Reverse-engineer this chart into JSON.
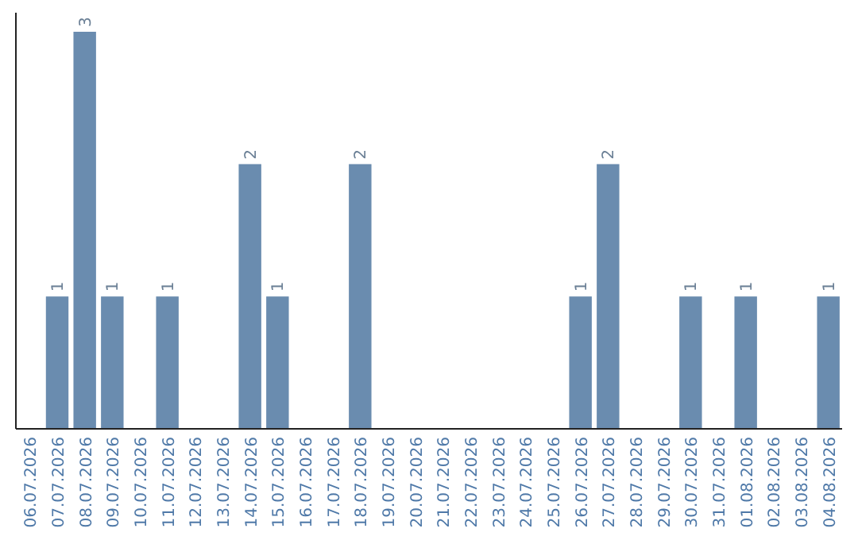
{
  "chart_data": {
    "type": "bar",
    "categories": [
      "06.07.2026",
      "07.07.2026",
      "08.07.2026",
      "09.07.2026",
      "10.07.2026",
      "11.07.2026",
      "12.07.2026",
      "13.07.2026",
      "14.07.2026",
      "15.07.2026",
      "16.07.2026",
      "17.07.2026",
      "18.07.2026",
      "19.07.2026",
      "20.07.2026",
      "21.07.2026",
      "22.07.2026",
      "23.07.2026",
      "24.07.2026",
      "25.07.2026",
      "26.07.2026",
      "27.07.2026",
      "28.07.2026",
      "29.07.2026",
      "30.07.2026",
      "31.07.2026",
      "01.08.2026",
      "02.08.2026",
      "03.08.2026",
      "04.08.2026"
    ],
    "values": [
      null,
      1,
      3,
      1,
      null,
      1,
      null,
      null,
      2,
      1,
      null,
      null,
      2,
      null,
      null,
      null,
      null,
      null,
      null,
      null,
      1,
      2,
      null,
      null,
      1,
      null,
      1,
      null,
      null,
      1
    ],
    "color": "#6a8caf",
    "data_labels": true,
    "tick_labels": "x"
  }
}
